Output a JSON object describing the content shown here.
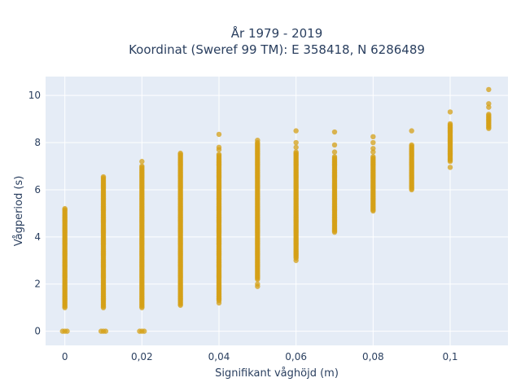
{
  "chart_data": {
    "type": "scatter",
    "title": "År 1979 - 2019",
    "subtitle": "Koordinat (Sweref 99 TM): E 358418, N 6286489",
    "xlabel": "Signifikant våghöjd (m)",
    "ylabel": "Vågperiod (s)",
    "xlim": [
      -0.005,
      0.115
    ],
    "ylim": [
      -0.6,
      10.8
    ],
    "x_ticks": [
      0,
      0.02,
      0.04,
      0.06,
      0.08,
      0.1
    ],
    "x_tick_labels": [
      "0",
      "0,02",
      "0,04",
      "0,06",
      "0,08",
      "0,1"
    ],
    "y_ticks": [
      0,
      2,
      4,
      6,
      8,
      10
    ],
    "y_tick_labels": [
      "0",
      "2",
      "4",
      "6",
      "8",
      "10"
    ],
    "grid": true,
    "plot_bg": "#e5ecf6",
    "marker_color": "#d4a017",
    "point_groups": [
      {
        "x": 0,
        "ranges": [
          [
            1.0,
            5.2
          ],
          [
            0,
            0
          ]
        ],
        "extra": []
      },
      {
        "x": 0.01,
        "ranges": [
          [
            1.0,
            6.5
          ],
          [
            0,
            0
          ]
        ],
        "extra": [
          6.55
        ]
      },
      {
        "x": 0.02,
        "ranges": [
          [
            1.0,
            7.0
          ],
          [
            0,
            0
          ]
        ],
        "extra": [
          7.2
        ]
      },
      {
        "x": 0.03,
        "ranges": [
          [
            1.1,
            7.5
          ]
        ],
        "extra": [
          7.55
        ]
      },
      {
        "x": 0.04,
        "ranges": [
          [
            1.3,
            7.5
          ]
        ],
        "extra": [
          7.7,
          7.8,
          8.35,
          1.2
        ]
      },
      {
        "x": 0.05,
        "ranges": [
          [
            2.2,
            8.0
          ]
        ],
        "extra": [
          8.1,
          2.0,
          1.9
        ]
      },
      {
        "x": 0.06,
        "ranges": [
          [
            3.1,
            7.6
          ]
        ],
        "extra": [
          7.8,
          8.0,
          8.5,
          3.0
        ]
      },
      {
        "x": 0.07,
        "ranges": [
          [
            4.2,
            7.4
          ]
        ],
        "extra": [
          7.6,
          7.9,
          8.45
        ]
      },
      {
        "x": 0.08,
        "ranges": [
          [
            5.1,
            7.4
          ]
        ],
        "extra": [
          7.6,
          7.75,
          8.0,
          8.25
        ]
      },
      {
        "x": 0.09,
        "ranges": [
          [
            6.0,
            7.9
          ]
        ],
        "extra": [
          8.5
        ]
      },
      {
        "x": 0.1,
        "ranges": [
          [
            7.2,
            8.8
          ]
        ],
        "extra": [
          6.95,
          9.3
        ]
      },
      {
        "x": 0.11,
        "ranges": [
          [
            8.6,
            9.2
          ]
        ],
        "extra": [
          9.5,
          9.65,
          10.25
        ]
      }
    ]
  }
}
